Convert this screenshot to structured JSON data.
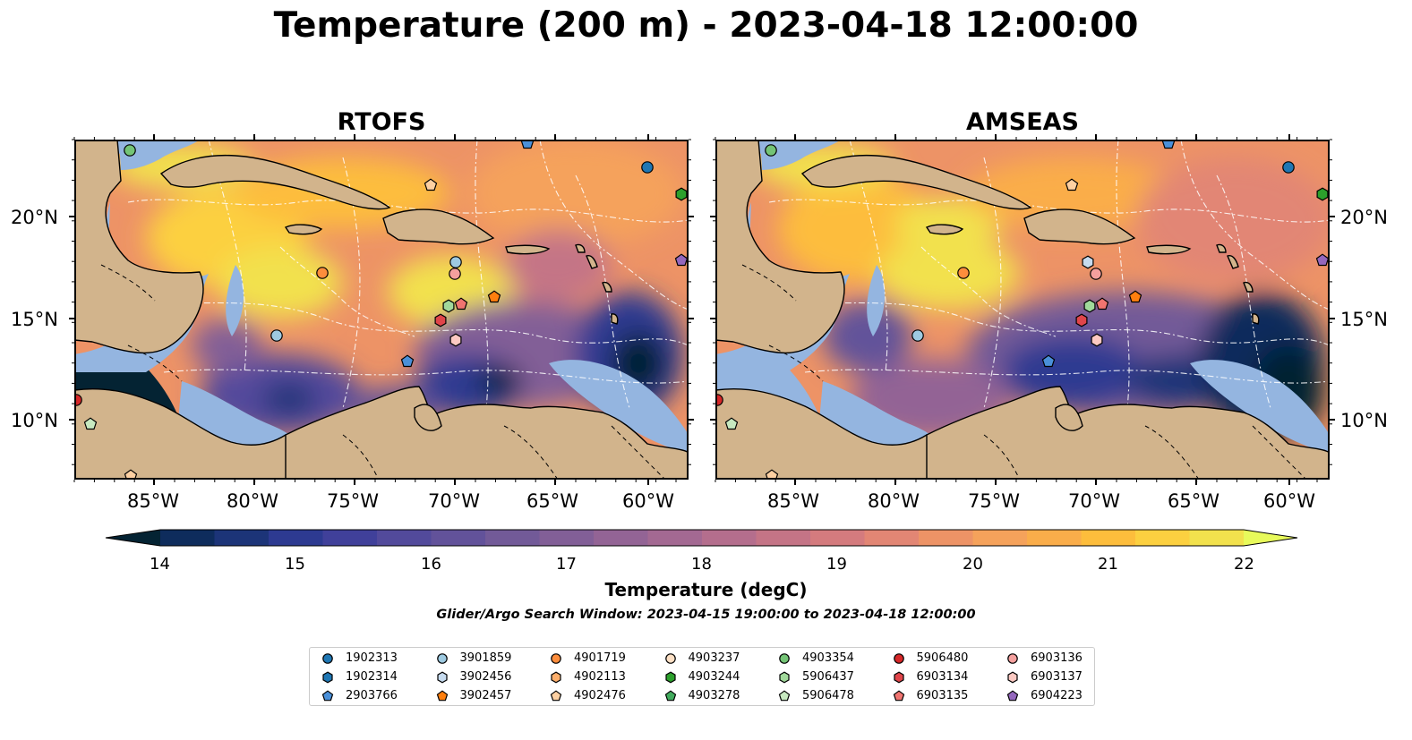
{
  "title": "Temperature (200 m) - 2023-04-18 12:00:00",
  "panels": [
    {
      "title": "RTOFS"
    },
    {
      "title": "AMSEAS"
    }
  ],
  "axes": {
    "lon_ticks": [
      "85°W",
      "80°W",
      "75°W",
      "70°W",
      "65°W",
      "60°W"
    ],
    "lat_ticks": [
      "20°N",
      "15°N",
      "10°N"
    ]
  },
  "colorbar": {
    "label": "Temperature (degC)",
    "ticks": [
      "14",
      "15",
      "16",
      "17",
      "18",
      "19",
      "20",
      "21",
      "22"
    ],
    "range": [
      14,
      22
    ],
    "step": 0.5,
    "extend": "both",
    "colormap": "thermal",
    "colors": [
      "#042333",
      "#0e2c5c",
      "#1c3478",
      "#2d3a91",
      "#40409a",
      "#524a9b",
      "#62529a",
      "#725a98",
      "#825f97",
      "#936495",
      "#a36992",
      "#b46e8d",
      "#c47486",
      "#d47b7e",
      "#e28674",
      "#ed9366",
      "#f5a25b",
      "#faad4a",
      "#fdbd3c",
      "#fcd040",
      "#f2e14d",
      "#e8fa5b"
    ]
  },
  "search_window": "Glider/Argo Search Window: 2023-04-15 19:00:00 to 2023-04-18 12:00:00",
  "legend": {
    "items": [
      {
        "id": "1902313",
        "marker": "circle",
        "color": "#1f77b4"
      },
      {
        "id": "1902314",
        "marker": "hexagon",
        "color": "#1f77b4"
      },
      {
        "id": "2903766",
        "marker": "pentagon",
        "color": "#4a90d9"
      },
      {
        "id": "3901859",
        "marker": "circle",
        "color": "#9ecae1"
      },
      {
        "id": "3902456",
        "marker": "hexagon",
        "color": "#c6dbef"
      },
      {
        "id": "3902457",
        "marker": "pentagon",
        "color": "#ff7f0e"
      },
      {
        "id": "4901719",
        "marker": "circle",
        "color": "#fd8d3c"
      },
      {
        "id": "4902113",
        "marker": "hexagon",
        "color": "#fdae6b"
      },
      {
        "id": "4902476",
        "marker": "pentagon",
        "color": "#fdd0a2"
      },
      {
        "id": "4903237",
        "marker": "circle",
        "color": "#fde0c5"
      },
      {
        "id": "4903244",
        "marker": "hexagon",
        "color": "#2ca02c"
      },
      {
        "id": "4903278",
        "marker": "pentagon",
        "color": "#41ab5d"
      },
      {
        "id": "4903354",
        "marker": "circle",
        "color": "#74c476"
      },
      {
        "id": "5906437",
        "marker": "hexagon",
        "color": "#a1d99b"
      },
      {
        "id": "5906478",
        "marker": "pentagon",
        "color": "#c7e9c0"
      },
      {
        "id": "5906480",
        "marker": "circle",
        "color": "#d62728"
      },
      {
        "id": "6903134",
        "marker": "hexagon",
        "color": "#e0454a"
      },
      {
        "id": "6903135",
        "marker": "pentagon",
        "color": "#f07470"
      },
      {
        "id": "6903136",
        "marker": "circle",
        "color": "#f4a09e"
      },
      {
        "id": "6903137",
        "marker": "hexagon",
        "color": "#fcc9c2"
      },
      {
        "id": "6904223",
        "marker": "pentagon",
        "color": "#9467bd"
      }
    ]
  },
  "colors": {
    "land": "#d2b48c",
    "shallow": "#94b5e0",
    "contour": "#ffffff"
  }
}
